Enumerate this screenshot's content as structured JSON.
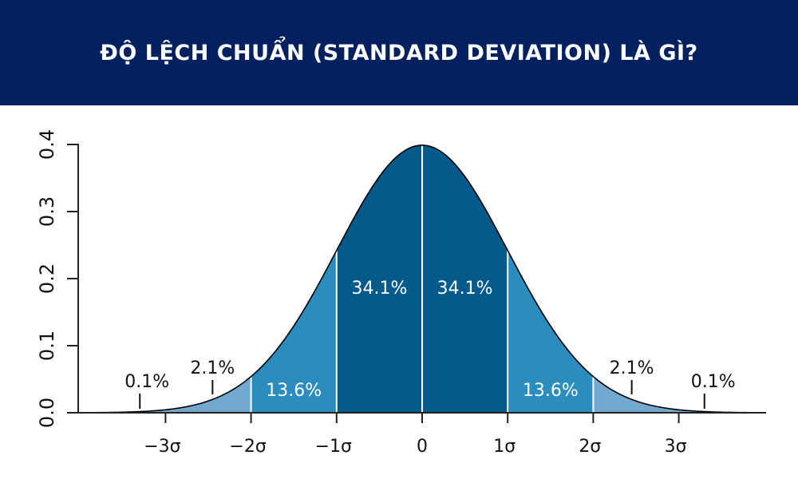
{
  "header": {
    "title": "ĐỘ LỆCH CHUẨN (STANDARD DEVIATION) LÀ GÌ?"
  },
  "colors": {
    "header_bg": "#03205f",
    "inner": "#055a8c",
    "middle": "#2b8cbe",
    "tail": "#74a9cf",
    "far_tail": "#9ecae1"
  },
  "chart_data": {
    "type": "area",
    "title": "",
    "xlabel": "",
    "ylabel": "",
    "distribution": "standard normal density",
    "xlim": [
      -4,
      4
    ],
    "ylim": [
      0,
      0.4
    ],
    "grid": false,
    "y_ticks": [
      "0.0",
      "0.1",
      "0.2",
      "0.3",
      "0.4"
    ],
    "x_ticks": [
      "−3σ",
      "−2σ",
      "−1σ",
      "0",
      "1σ",
      "2σ",
      "3σ"
    ],
    "regions": [
      {
        "from": -3,
        "to": -2,
        "label": "2.1%"
      },
      {
        "from": -2,
        "to": -1,
        "label": "13.6%"
      },
      {
        "from": -1,
        "to": 0,
        "label": "34.1%"
      },
      {
        "from": 0,
        "to": 1,
        "label": "34.1%"
      },
      {
        "from": 1,
        "to": 2,
        "label": "13.6%"
      },
      {
        "from": 2,
        "to": 3,
        "label": "2.1%"
      }
    ],
    "tail_labels": [
      {
        "side": "left",
        "label": "0.1%"
      },
      {
        "side": "right",
        "label": "0.1%"
      }
    ]
  }
}
